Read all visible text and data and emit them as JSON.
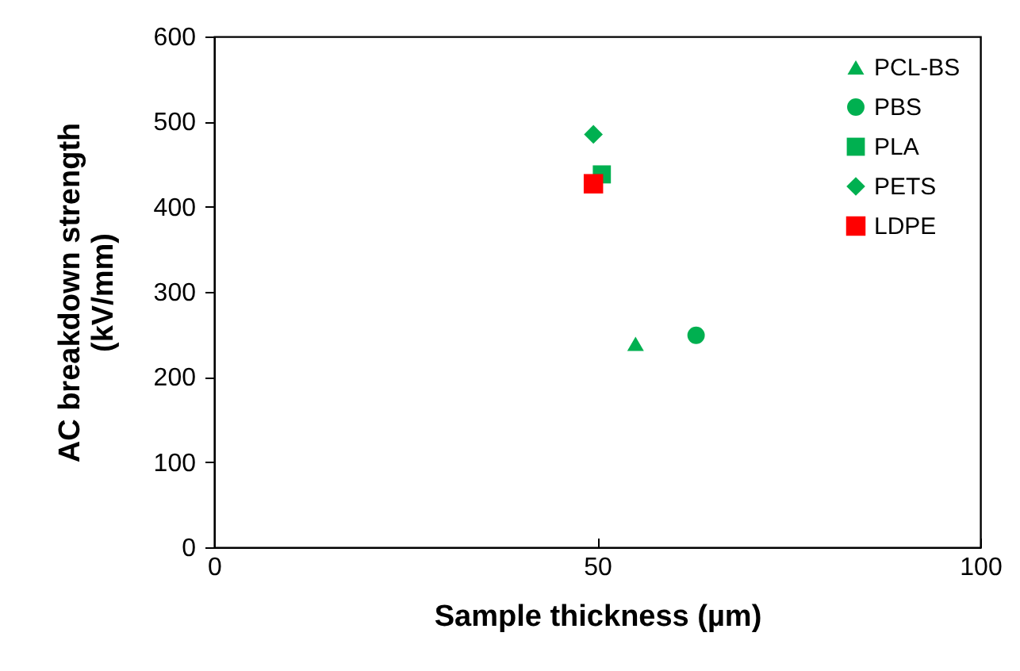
{
  "chart_data": {
    "type": "scatter",
    "xlabel": "Sample thickness (µm)",
    "ylabel": "AC breakdown strength\n(kV/mm)",
    "xlim": [
      0,
      100
    ],
    "xticks": [
      0,
      50,
      100
    ],
    "ylim": [
      0,
      600
    ],
    "yticks": [
      0,
      100,
      200,
      300,
      400,
      500,
      600
    ],
    "grid": false,
    "legend": "top right",
    "series": [
      {
        "name": "PCL-BS",
        "color": "#00b050",
        "marker": "triangle",
        "x": [
          55.0
        ],
        "values": [
          239
        ]
      },
      {
        "name": "PBS",
        "color": "#00b050",
        "marker": "circle",
        "x": [
          62.9
        ],
        "values": [
          249
        ]
      },
      {
        "name": "PLA",
        "color": "#00b050",
        "marker": "square",
        "x": [
          50.6
        ],
        "values": [
          438
        ]
      },
      {
        "name": "PETS",
        "color": "#00b050",
        "marker": "diamond",
        "x": [
          49.5
        ],
        "values": [
          485
        ]
      },
      {
        "name": "LDPE",
        "color": "#ff0000",
        "marker": "square",
        "x": [
          49.5
        ],
        "values": [
          427
        ]
      }
    ]
  }
}
